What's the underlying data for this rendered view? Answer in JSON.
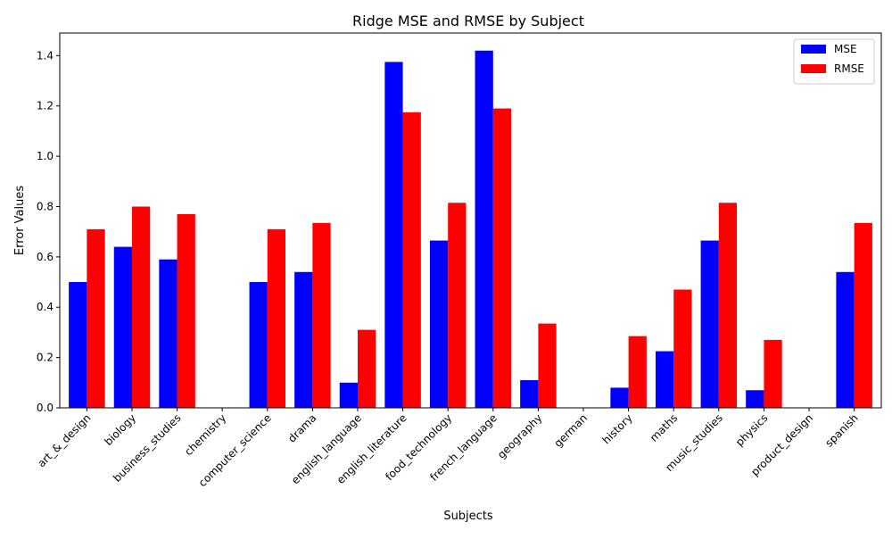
{
  "chart_data": {
    "type": "bar",
    "title": "Ridge MSE and RMSE by Subject",
    "xlabel": "Subjects",
    "ylabel": "Error Values",
    "categories": [
      "art_&_design",
      "biology",
      "business_studies",
      "chemistry",
      "computer_science",
      "drama",
      "english_language",
      "english_literature",
      "food_technology",
      "french_language",
      "geography",
      "german",
      "history",
      "maths",
      "music_studies",
      "physics",
      "product_design",
      "spanish"
    ],
    "series": [
      {
        "name": "MSE",
        "color": "#0000ff",
        "values": [
          0.5,
          0.64,
          0.59,
          0.0,
          0.5,
          0.54,
          0.1,
          1.375,
          0.665,
          1.42,
          0.11,
          0.0,
          0.08,
          0.225,
          0.665,
          0.07,
          0.0,
          0.54
        ]
      },
      {
        "name": "RMSE",
        "color": "#ff0000",
        "values": [
          0.71,
          0.8,
          0.77,
          0.0,
          0.71,
          0.735,
          0.31,
          1.175,
          0.815,
          1.19,
          0.335,
          0.0,
          0.285,
          0.47,
          0.815,
          0.27,
          0.0,
          0.735
        ]
      }
    ],
    "yticks": [
      "0.0",
      "0.2",
      "0.4",
      "0.6",
      "0.8",
      "1.0",
      "1.2",
      "1.4"
    ],
    "ylim": [
      0,
      1.49
    ],
    "grid": false,
    "legend_position": "top-right"
  }
}
